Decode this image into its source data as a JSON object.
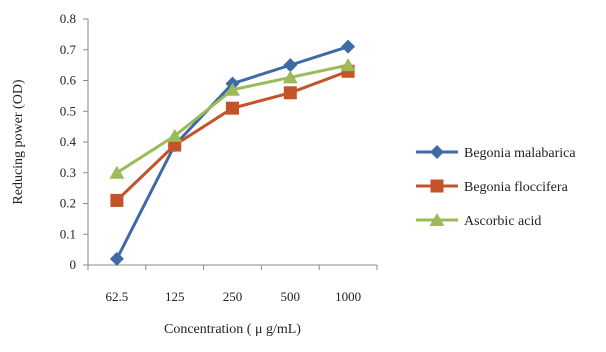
{
  "chart_data": {
    "type": "line",
    "title": "",
    "xlabel": "Concentration ( μ g/mL)",
    "ylabel": "Reducing power (OD)",
    "categories": [
      "62.5",
      "125",
      "250",
      "500",
      "1000"
    ],
    "ylim": [
      0,
      0.8
    ],
    "yticks": [
      "0",
      "0.1",
      "0.2",
      "0.3",
      "0.4",
      "0.5",
      "0.6",
      "0.7",
      "0.8"
    ],
    "grid": false,
    "legend_position": "right",
    "series": [
      {
        "name": "Begonia malabarica",
        "values": [
          0.02,
          0.39,
          0.59,
          0.65,
          0.71
        ],
        "color": "#3e6aa6",
        "marker": "diamond"
      },
      {
        "name": "Begonia floccifera",
        "values": [
          0.21,
          0.39,
          0.51,
          0.56,
          0.63
        ],
        "color": "#c4532a",
        "marker": "square"
      },
      {
        "name": "Ascorbic acid",
        "values": [
          0.3,
          0.42,
          0.57,
          0.61,
          0.65
        ],
        "color": "#9bbb59",
        "marker": "triangle"
      }
    ]
  }
}
